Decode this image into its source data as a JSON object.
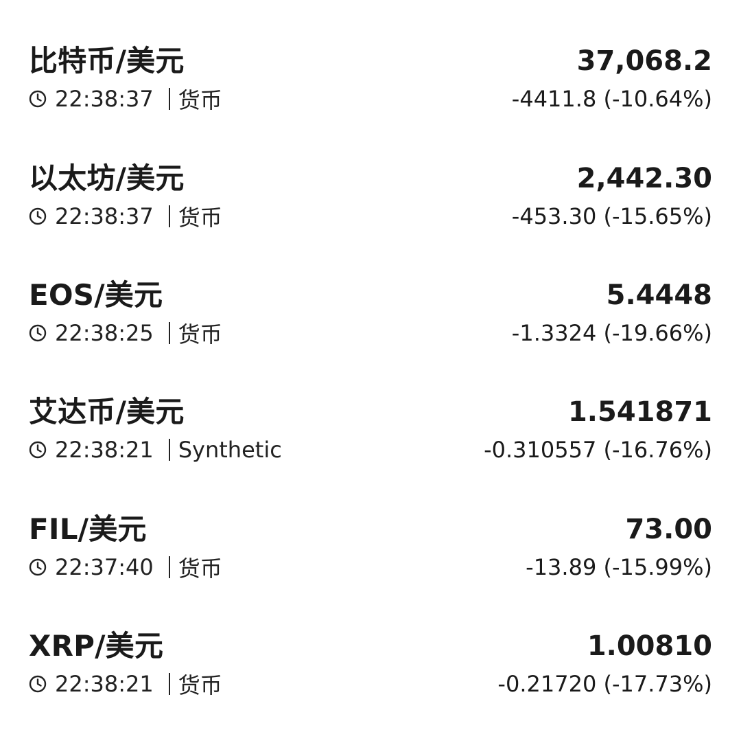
{
  "quotes": [
    {
      "name": "比特币/美元",
      "price": "37,068.2",
      "time": "22:38:37",
      "market": "货币",
      "change": "-4411.8 (-10.64%)"
    },
    {
      "name": "以太坊/美元",
      "price": "2,442.30",
      "time": "22:38:37",
      "market": "货币",
      "change": "-453.30 (-15.65%)"
    },
    {
      "name": "EOS/美元",
      "price": "5.4448",
      "time": "22:38:25",
      "market": "货币",
      "change": "-1.3324 (-19.66%)"
    },
    {
      "name": "艾达币/美元",
      "price": "1.541871",
      "time": "22:38:21",
      "market": "Synthetic",
      "change": "-0.310557 (-16.76%)"
    },
    {
      "name": "FIL/美元",
      "price": "73.00",
      "time": "22:37:40",
      "market": "货币",
      "change": "-13.89 (-15.99%)"
    },
    {
      "name": "XRP/美元",
      "price": "1.00810",
      "time": "22:38:21",
      "market": "货币",
      "change": "-0.21720 (-17.73%)"
    }
  ],
  "icons": {
    "time": "clock-icon"
  }
}
